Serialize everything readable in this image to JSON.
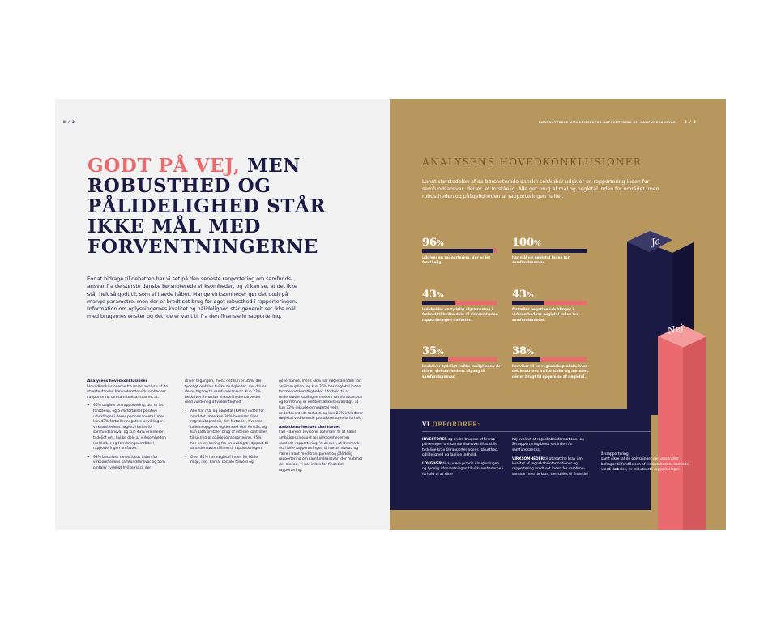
{
  "left_page": {
    "page_number": "8 / 2",
    "headline_accent": "GODT PÅ VEJ,",
    "headline_rest": " MEN ROBUSTHED OG PÅLIDELIGHED STÅR IKKE MÅL MED FORVENTNINGERNE",
    "intro": "For at bidrage til debatten har vi set på den seneste rapportering om samfunds­ansvar fra de største danske børsnoterede virksomheder, og vi kan se, at det ikke står helt så godt til, som vi havde håbet. Mange virksomheder gør det godt på mange parametre, men der er bredt set brug for øget robusthed i rapporteringen. Information om oplysningernes kvalitet og pålidelighed står generelt set ikke mål med brugernes ønsker og det, de er vant til fra den finansielle rapportering.",
    "col1_heading": "Analysens hovedkonklusioner",
    "col1_text": "Hovedkonklusionerne fra vores analyse af de største danske børsnoterede virk­somheders rapportering om samfunds­ansvar er, at:",
    "col1_bullet1": "96% udgiver en rapportering, der er let forståelig, og 57% fortæller positive udviklinger i deres performancetal, men kun 43% fortæller negative udviklin­ger i virksomhedens nøgletal inden for samfundsansvar og kun 43% oriente­rer tydeligt om, hvilke dele af virksom­heden (selskaber og forretningsom­råder) rapporteringen omfatter.",
    "col1_bullet2": "98% beskriver deres fokus inden for virksomhedens samfundsansvar og 55% omtaler tydeligt hvilke risici, der",
    "col2_text": "driver tilgangen, mens det kun er 35%, der tydeligt omtaler hvilke muligheder, der driver deres tilgang til samfundsansvar. Kun 23% beskri­ver, hvordan virksomheden arbejder med vurdering af væsentlighed.",
    "col2_bullet1": "Alle har mål og nøgletal (KPI'er) inden for området, men kun 38% henviser til en regnskabspraksis, der fortæller, hvor­dan tallene opgøres og dermed skal forstås, og kun 18% omtaler brug af interne kontroller til sikring af pålidelig rapportering. 25% har en erklæring fra en uvildig tredjepart til at understøtte tilliden til rapporteringen.",
    "col2_bullet2": "Over 80% har nøgletal inden for både miljø, inkl. klima, sociale forhold og",
    "col3_text": "governance, mens 48% har nøgletal inden for antikorruption, og kun 36% har nøgletal inden for menneskerettig­heder. I forhold til at understøtte kobling­en mellem samfundsansvar og forretning er det bemærkelsesværdigt, at kun 32% inkluderer nøgletal vedr. underleverande forhold, og kun 25% inkluderer nøgletal vedrørende produktrelaterede forhold.",
    "col3_heading": "Ambitionsniveauet skal hæves",
    "col3_text2": "FSR - danske revisorer opfordrer til at hæve ambitionsniveauet for virksomhedernes samlede rapportering. Vi ønsker, at Den­mark skal løfte rapporteringen til næste niveau og være i front med transparent og pålidelig rapportering om samfunds­ansvar, der matcher det niveau, vi har inden for finansiel rapportering."
  },
  "right_page": {
    "running_head": "BØRSNOTEREDE VIRKSOMHEDERS RAPPORTERING OM SAMFUNDSANSVAR",
    "page_number": "3 / 3",
    "title": "ANALYSENS HOVEDKONKLUSIONER",
    "intro": "Langt størstedelen af de børsnoterede danske selskaber udgiver en rapportering inden for samfundsansvar, der er let forståelig. Alle gør brug af mål og nøgletal inden for området, men robustheden og påligeligheden af rapporteringen halter.",
    "stats": [
      {
        "value": "96",
        "unit": "%",
        "fraction": 0.96,
        "desc": "udgiver en rapportering, der er let forståelig."
      },
      {
        "value": "100",
        "unit": "%",
        "fraction": 1.0,
        "desc": "har mål og nøgletal inden for samfundsansvar."
      },
      {
        "value": "43",
        "unit": "%",
        "fraction": 0.43,
        "desc": "indeholder en tydelig afgrænsning i forhold til hvilke dele af virksom­heden rapporteringen omfatter."
      },
      {
        "value": "43",
        "unit": "%",
        "fraction": 0.43,
        "desc": "fortæller negative udviklinger i virksomhedens nøgletal inden for samfundsansvar."
      },
      {
        "value": "35",
        "unit": "%",
        "fraction": 0.35,
        "desc": "beskriver tydeligt hvilke mulig­heder, der driver virksomhedens tilgang til samfundsansvar."
      },
      {
        "value": "38",
        "unit": "%",
        "fraction": 0.38,
        "desc": "henviser til en regnskabspraksis, hvor det beskrives hvilke kilder og metoder, der er brugt til opgørelse af nøgletal."
      }
    ],
    "bar_labels": {
      "yes": "Ja",
      "no": "Nej"
    },
    "colors": {
      "navy": "#1b1a45",
      "gold": "#b8975e",
      "coral": "#ea6a6d"
    },
    "vi_prefix": "VI",
    "vi_label": "OPFORDRER:",
    "t_col1_p1_bold": "INVESTORER",
    "t_col1_p1": " og andre brugere af årsrap­porteringen om samfundsansvar til at stille tydelige krav til rapporteringens ro­busthed, pålidelighed og faglige indhold.",
    "t_col1_p2_bold": "LOVGIVER",
    "t_col1_p2": " til at være præcis i lovgiv­ningen og tydelig i forventningen til virksomhederne i forhold til at sikre",
    "t_col2_p1": "høj kvalitet af regnskabsinformationer og årsrapportering bredt set inden for samfundsansvar.",
    "t_col2_p2_bold": "VIRKSOMHEDER",
    "t_col2_p2": " til at matche krav om kvalitet af regnskabsinformationer og rapportering bredt set inden for samfund­sansvar med de krav, der stilles til finansiel",
    "t_col3_p1": "årsrapportering.",
    "t_col3_p2": "samt sikre, at de op­lysninger der væsentligt bidrager til forståelsen af virksomhedens samlede værdiskabelse, er inkluderet i rapporteringen."
  }
}
